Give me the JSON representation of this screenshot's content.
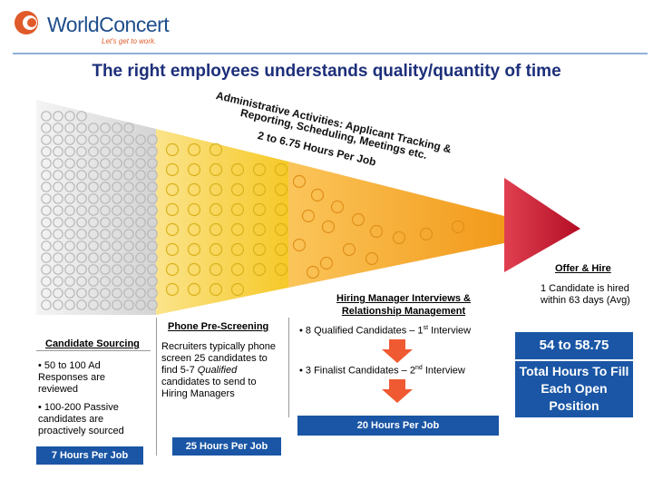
{
  "logo": {
    "brand": "WorldConcert",
    "tagline": "Let's get to work."
  },
  "title": "The right employees understands quality/quantity of time",
  "admin": {
    "heading": "Administrative Activities:",
    "line_a": "Applicant Tracking &",
    "line_b": "Reporting, Scheduling, Meetings etc.",
    "hours": "2 to 6.75 Hours Per Job"
  },
  "offer": {
    "heading": "Offer & Hire",
    "detail": "1 Candidate is hired within 63 days (Avg)"
  },
  "sourcing": {
    "heading": "Candidate Sourcing",
    "bullet1": "• 50 to 100 Ad Responses are reviewed",
    "bullet2": "• 100-200 Passive candidates are proactively sourced",
    "hours": "7 Hours Per Job"
  },
  "screening": {
    "heading": "Phone Pre-Screening",
    "body_a": "Recruiters typically phone screen 25 candidates to find 5-7",
    "body_em": "Qualified",
    "body_b": "candidates to send to Hiring Managers",
    "hours": "25 Hours Per Job"
  },
  "interviews": {
    "heading": "Hiring Manager Interviews & Relationship Management",
    "bullet1_a": "• 8 Qualified Candidates – 1",
    "bullet1_sup": "st",
    "bullet1_b": "Interview",
    "bullet2_a": "• 3 Finalist Candidates – 2",
    "bullet2_sup": "nd",
    "bullet2_b": "Interview",
    "hours": "20 Hours Per Job"
  },
  "total": {
    "range": "54 to 58.75",
    "label": "Total Hours To Fill Each Open Position"
  },
  "colors": {
    "blue_box": "#1a56a5",
    "title": "#1d2f7a",
    "yellow": "#f6cc2e",
    "orange": "#f5a623",
    "red": "#c8102e",
    "gray": "#dcdcdc"
  }
}
